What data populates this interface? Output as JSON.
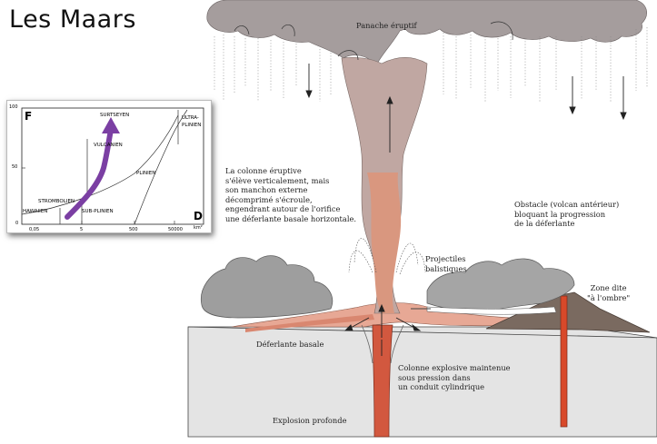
{
  "title": "Les Maars",
  "labels": {
    "panache": "Panache éruptif",
    "colonne": [
      "La colonne éruptive",
      "s'élève verticalement, mais",
      "son manchon externe",
      "décomprimé s'écroule,",
      "engendrant autour de l'orifice",
      "une déferlante basale horizontale."
    ],
    "obstacle": [
      "Obstacle (volcan antérieur)",
      "bloquant la progression",
      "de la déferlante"
    ],
    "projectiles": [
      "Projectiles",
      "balistiques"
    ],
    "zone": [
      "Zone dite",
      "\"à l'ombre\""
    ],
    "deferlante": "Déferlante basale",
    "conduit": [
      "Colonne explosive maintenue",
      "sous pression dans",
      "un conduit cylindrique"
    ],
    "explosion": "Explosion profonde"
  },
  "inset": {
    "axis_f": "F",
    "axis_d": "D",
    "y_ticks": [
      "100",
      "50",
      "0"
    ],
    "x_ticks": [
      "0,05",
      "5",
      "500",
      "50000",
      "km²"
    ],
    "regions": [
      "SURTSEYEN",
      "VULCANIEN",
      "PLINIEN",
      "ULTRA-",
      "PLINIEN",
      "STROMBOLIEN",
      "HAWAIIEN",
      "SUB-PLINIEN"
    ]
  },
  "colors": {
    "ash": "#b5aeae",
    "magma": "#d98770",
    "ground": "#e3e3e3",
    "arrow": "#7b3fa3"
  }
}
